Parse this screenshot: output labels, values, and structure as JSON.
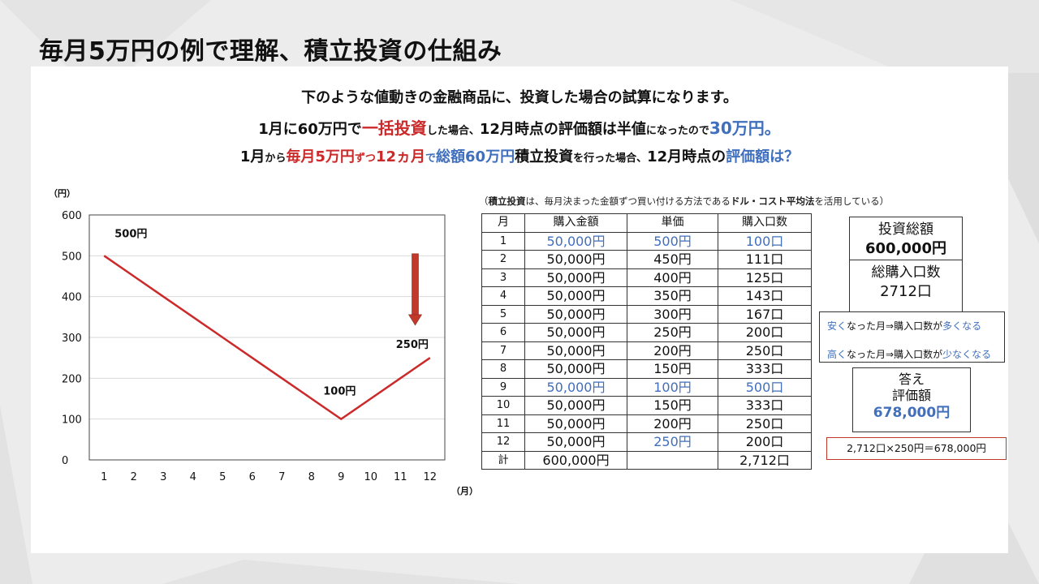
{
  "title": "毎月5万円の例で理解、積立投資の仕組み",
  "intro": {
    "line1": "下のような値動きの金融商品に、投資した場合の試算になります。",
    "line2": {
      "a": "1月に60万円で",
      "b": "一括投資",
      "c": "した場合、",
      "d": "12月時点の評価額は半値",
      "e": "になったので",
      "f": "30万円。"
    },
    "line3": {
      "a": "1月",
      "b": "から",
      "c": "毎月5万円",
      "d": "ずつ",
      "e": "12ヵ月",
      "f": "で",
      "g": "総額60万円",
      "h": "積立投資",
      "i": "を行った場合、",
      "j": "12月時点の",
      "k": "評価額は？"
    }
  },
  "chart_data": {
    "type": "line",
    "x": [
      1,
      2,
      3,
      4,
      5,
      6,
      7,
      8,
      9,
      10,
      11,
      12
    ],
    "series": [
      {
        "values": [
          500,
          450,
          400,
          350,
          300,
          250,
          200,
          150,
          100,
          150,
          200,
          250
        ]
      }
    ],
    "ylim": [
      0,
      600
    ],
    "yticks": [
      0,
      100,
      200,
      300,
      400,
      500,
      600
    ],
    "ylabel": "（円）",
    "xlabel": "（月）",
    "grid": true,
    "colors": {
      "line": "#cc2a2a",
      "arrow": "#c0392b"
    },
    "annotations": [
      {
        "text": "500円",
        "x": 1,
        "y": 500
      },
      {
        "text": "100円",
        "x": 9,
        "y": 100
      },
      {
        "text": "250円",
        "x": 12,
        "y": 250
      }
    ]
  },
  "note": {
    "prefix": "（",
    "term": "積立投資",
    "middle": "は、毎月決まった金額ずつ買い付ける方法である",
    "method": "ドル・コスト平均法",
    "suffix": "を活用している）"
  },
  "table": {
    "headers": [
      "月",
      "購入金額",
      "単価",
      "購入口数"
    ],
    "rows": [
      {
        "month": "1",
        "amount": "50,000円",
        "price": "500円",
        "units": "100口",
        "hl_amount": true,
        "hl_price": true,
        "hl_units": true
      },
      {
        "month": "2",
        "amount": "50,000円",
        "price": "450円",
        "units": "111口"
      },
      {
        "month": "3",
        "amount": "50,000円",
        "price": "400円",
        "units": "125口"
      },
      {
        "month": "4",
        "amount": "50,000円",
        "price": "350円",
        "units": "143口"
      },
      {
        "month": "5",
        "amount": "50,000円",
        "price": "300円",
        "units": "167口"
      },
      {
        "month": "6",
        "amount": "50,000円",
        "price": "250円",
        "units": "200口"
      },
      {
        "month": "7",
        "amount": "50,000円",
        "price": "200円",
        "units": "250口"
      },
      {
        "month": "8",
        "amount": "50,000円",
        "price": "150円",
        "units": "333口"
      },
      {
        "month": "9",
        "amount": "50,000円",
        "price": "100円",
        "units": "500口",
        "hl_amount": true,
        "hl_price": true,
        "hl_units": true
      },
      {
        "month": "10",
        "amount": "50,000円",
        "price": "150円",
        "units": "333口"
      },
      {
        "month": "11",
        "amount": "50,000円",
        "price": "200円",
        "units": "250口"
      },
      {
        "month": "12",
        "amount": "50,000円",
        "price": "250円",
        "units": "200口",
        "hl_price": true
      }
    ],
    "total": {
      "label": "計",
      "amount": "600,000円",
      "price": "",
      "units": "2,712口"
    }
  },
  "summary": {
    "invest_label": "投資総額",
    "invest_value": "600,000円",
    "units_label": "総購入口数",
    "units_value": "2712口"
  },
  "notes_box": {
    "n1": {
      "a": "安く",
      "b": "なった月⇒購入口数が",
      "c": "多くなる"
    },
    "n2": {
      "a": "高く",
      "b": "なった月⇒購入口数が",
      "c": "少なくなる"
    }
  },
  "answer": {
    "l1": "答え",
    "l2": "評価額",
    "value": "678,000円"
  },
  "formula": "2,712口×250円＝678,000円"
}
